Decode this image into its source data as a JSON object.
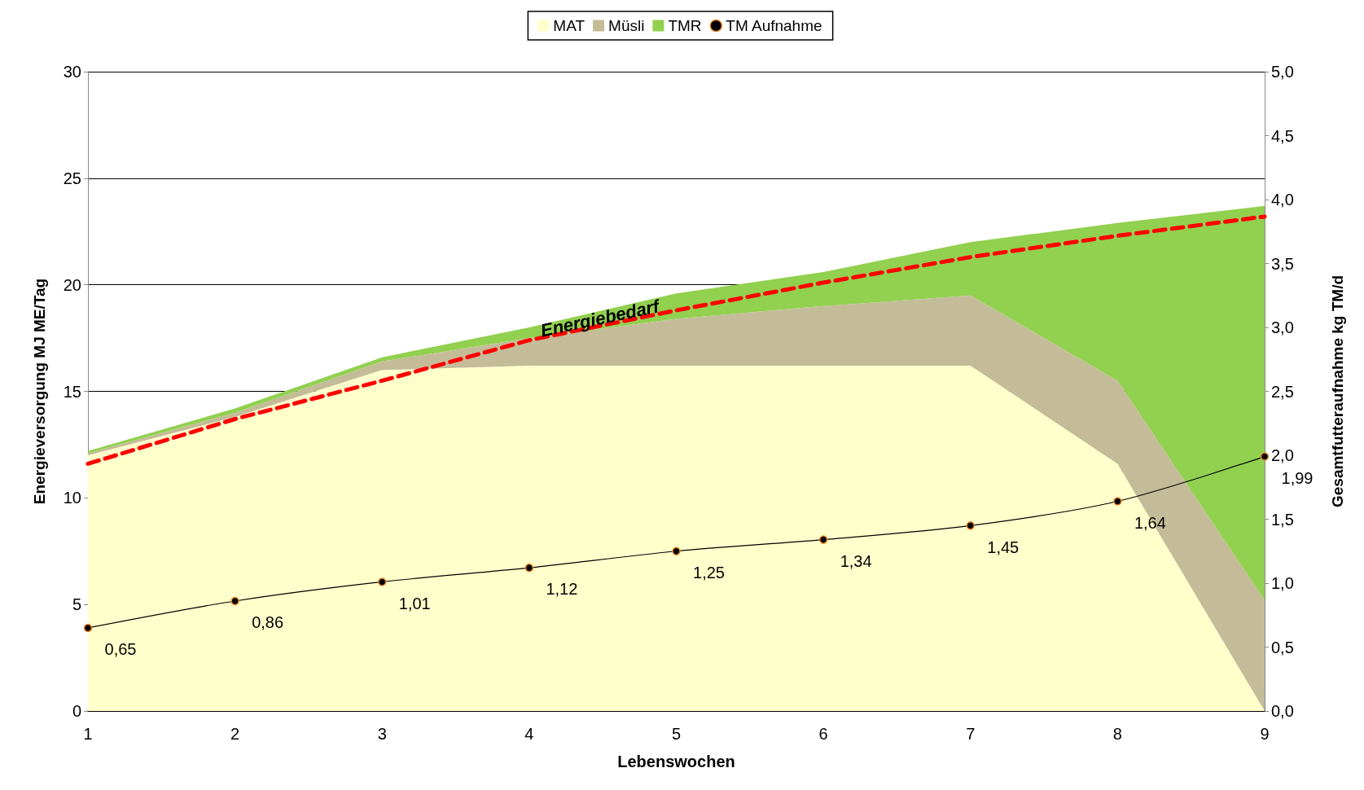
{
  "chart_data": {
    "type": "area",
    "stacked": true,
    "xlabel": "Lebenswochen",
    "ylabel": "Energieversorgung MJ ME/Tag",
    "y2label": "Gesamtfutteraufnahme kg TM/d",
    "categories": [
      "1",
      "2",
      "3",
      "4",
      "5",
      "6",
      "7",
      "8",
      "9"
    ],
    "series": [
      {
        "name": "MAT",
        "color": "#ffffcc",
        "values": [
          12.0,
          13.8,
          16.0,
          16.2,
          16.2,
          16.2,
          16.2,
          11.6,
          0
        ]
      },
      {
        "name": "Müsli",
        "color": "#c4bc98",
        "values": [
          0.1,
          0.2,
          0.4,
          1.3,
          2.2,
          2.8,
          3.3,
          3.9,
          5.2
        ]
      },
      {
        "name": "TMR",
        "color": "#92d050",
        "values": [
          0.1,
          0.2,
          0.2,
          0.5,
          1.2,
          1.6,
          2.5,
          7.4,
          18.5
        ]
      },
      {
        "name": "Energiebedarf",
        "type": "line",
        "line_style": "dashed",
        "color": "#ff0000",
        "values": [
          11.6,
          13.7,
          15.5,
          17.4,
          18.8,
          20.1,
          21.3,
          22.3,
          23.2
        ]
      },
      {
        "name": "TM Aufnahme",
        "type": "line",
        "axis": "y2",
        "marker": "circle",
        "value_labels": [
          "0,65",
          "0,86",
          "1,01",
          "1,12",
          "1,25",
          "1,34",
          "1,45",
          "1,64",
          "1,99"
        ],
        "color": "#000000",
        "values": [
          0.65,
          0.86,
          1.01,
          1.12,
          1.25,
          1.34,
          1.45,
          1.64,
          1.99
        ]
      }
    ],
    "ylim": [
      0,
      30
    ],
    "yticks": [
      0,
      5,
      10,
      15,
      20,
      25,
      30
    ],
    "y2lim": [
      0,
      5
    ],
    "y2ticks": [
      {
        "value": 0,
        "label": "0,0"
      },
      {
        "value": 0.5,
        "label": "0,5"
      },
      {
        "value": 1,
        "label": "1,0"
      },
      {
        "value": 1.5,
        "label": "1,5"
      },
      {
        "value": 2,
        "label": "2,0"
      },
      {
        "value": 2.5,
        "label": "2,5"
      },
      {
        "value": 3,
        "label": "3,0"
      },
      {
        "value": 3.5,
        "label": "3,5"
      },
      {
        "value": 4,
        "label": "4,0"
      },
      {
        "value": 4.5,
        "label": "4,5"
      },
      {
        "value": 5,
        "label": "5,0"
      }
    ],
    "grid": "y",
    "legend": "top"
  }
}
